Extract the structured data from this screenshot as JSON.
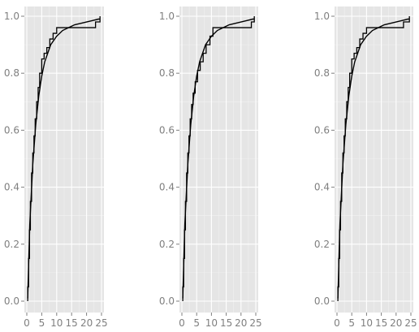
{
  "chart_data": [
    {
      "type": "line",
      "xlim": [
        0,
        25
      ],
      "ylim": [
        0,
        1
      ],
      "x_ticks": [
        "0",
        "5",
        "10",
        "15",
        "20",
        "25"
      ],
      "y_ticks": [
        "0.0",
        "0.2",
        "0.4",
        "0.6",
        "0.8",
        "1.0"
      ],
      "grid": true,
      "series": [
        {
          "kind": "step",
          "x": [
            0.3,
            0.6,
            0.9,
            1.2,
            1.6,
            2.0,
            2.4,
            2.8,
            3.3,
            3.8,
            4.3,
            5.0,
            5.8,
            6.7,
            7.7,
            8.8,
            10.0,
            23.0,
            24.5
          ],
          "y": [
            0.05,
            0.15,
            0.25,
            0.35,
            0.45,
            0.52,
            0.58,
            0.64,
            0.7,
            0.75,
            0.8,
            0.85,
            0.87,
            0.89,
            0.92,
            0.94,
            0.96,
            0.98,
            1.0
          ]
        },
        {
          "kind": "curve",
          "x": [
            0.3,
            1,
            2,
            3,
            4,
            5,
            6,
            7,
            8,
            10,
            12,
            14,
            16,
            18,
            20,
            22,
            24,
            24.5
          ],
          "y": [
            0.01,
            0.27,
            0.48,
            0.62,
            0.72,
            0.79,
            0.84,
            0.87,
            0.9,
            0.93,
            0.95,
            0.96,
            0.97,
            0.975,
            0.98,
            0.985,
            0.99,
            0.99
          ]
        }
      ]
    },
    {
      "type": "line",
      "xlim": [
        0,
        25
      ],
      "ylim": [
        0,
        1
      ],
      "x_ticks": [
        "0",
        "5",
        "10",
        "15",
        "20",
        "25"
      ],
      "y_ticks": [
        "0.0",
        "0.2",
        "0.4",
        "0.6",
        "0.8",
        "1.0"
      ],
      "grid": true,
      "series": [
        {
          "kind": "step",
          "x": [
            0.3,
            0.6,
            0.9,
            1.2,
            1.6,
            2.0,
            2.4,
            2.8,
            3.3,
            3.8,
            4.5,
            5.3,
            6.2,
            7.2,
            8.2,
            9.5,
            10.5,
            23.5,
            24.5
          ],
          "y": [
            0.05,
            0.15,
            0.25,
            0.35,
            0.45,
            0.52,
            0.58,
            0.64,
            0.69,
            0.73,
            0.77,
            0.81,
            0.84,
            0.87,
            0.9,
            0.93,
            0.96,
            0.98,
            1.0
          ]
        },
        {
          "kind": "curve",
          "x": [
            0.3,
            1,
            2,
            3,
            4,
            5,
            6,
            7,
            8,
            10,
            12,
            14,
            16,
            18,
            20,
            22,
            24,
            24.5
          ],
          "y": [
            0.01,
            0.27,
            0.48,
            0.62,
            0.72,
            0.79,
            0.84,
            0.87,
            0.9,
            0.93,
            0.95,
            0.96,
            0.97,
            0.975,
            0.98,
            0.985,
            0.99,
            0.99
          ]
        }
      ]
    },
    {
      "type": "line",
      "xlim": [
        0,
        25
      ],
      "ylim": [
        0,
        1
      ],
      "x_ticks": [
        "0",
        "5",
        "10",
        "15",
        "20",
        "25"
      ],
      "y_ticks": [
        "0.0",
        "0.2",
        "0.4",
        "0.6",
        "0.8",
        "1.0"
      ],
      "grid": true,
      "series": [
        {
          "kind": "step",
          "x": [
            0.3,
            0.6,
            0.9,
            1.2,
            1.6,
            2.0,
            2.4,
            2.8,
            3.3,
            3.8,
            4.3,
            5.0,
            5.8,
            6.7,
            7.7,
            8.8,
            10.0,
            22.5,
            24.5
          ],
          "y": [
            0.05,
            0.15,
            0.25,
            0.35,
            0.45,
            0.52,
            0.58,
            0.64,
            0.7,
            0.75,
            0.8,
            0.85,
            0.87,
            0.89,
            0.92,
            0.94,
            0.96,
            0.98,
            1.0
          ]
        },
        {
          "kind": "curve",
          "x": [
            0.3,
            1,
            2,
            3,
            4,
            5,
            6,
            7,
            8,
            10,
            12,
            14,
            16,
            18,
            20,
            22,
            24,
            24.5
          ],
          "y": [
            0.01,
            0.27,
            0.48,
            0.62,
            0.72,
            0.79,
            0.84,
            0.87,
            0.9,
            0.93,
            0.95,
            0.96,
            0.97,
            0.975,
            0.98,
            0.985,
            0.99,
            0.99
          ]
        }
      ]
    }
  ]
}
